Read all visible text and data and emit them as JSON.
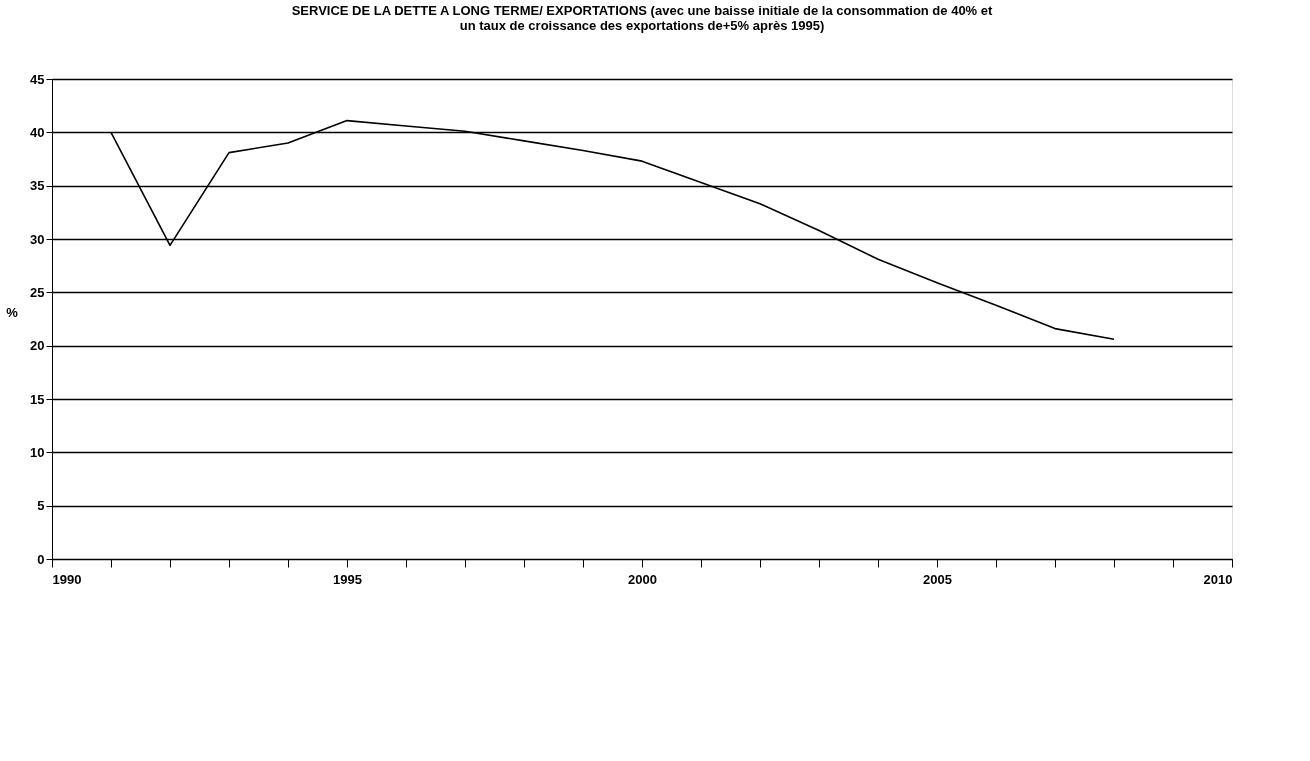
{
  "chart_data": {
    "type": "line",
    "title": [
      "SERVICE DE LA DETTE A LONG TERME/ EXPORTATIONS (avec une baisse initiale de la consommation de 40% et",
      "un taux de croissance des exportations de+5% après 1995)"
    ],
    "ylabel": "%",
    "x": [
      1991,
      1992,
      1993,
      1994,
      1995,
      1996,
      1997,
      1998,
      1999,
      2000,
      2001,
      2002,
      2003,
      2004,
      2005,
      2006,
      2007,
      2008
    ],
    "series": [
      {
        "color": "#000000",
        "values": [
          40,
          29.4,
          38.1,
          39,
          41.1,
          40.6,
          40.1,
          39.2,
          38.3,
          37.3,
          35.3,
          33.3,
          30.8,
          28.1,
          25.9,
          23.8,
          21.6,
          20.6
        ]
      }
    ],
    "xlim": [
      1990,
      2010
    ],
    "xticks": [
      1990,
      {
        "value": 1991,
        "label": null
      },
      {
        "value": 1992,
        "label": null
      },
      {
        "value": 1993,
        "label": null
      },
      {
        "value": 1994,
        "label": null
      },
      1995,
      {
        "value": 1996,
        "label": null
      },
      {
        "value": 1997,
        "label": null
      },
      {
        "value": 1998,
        "label": null
      },
      {
        "value": 1999,
        "label": null
      },
      2000,
      {
        "value": 2001,
        "label": null
      },
      {
        "value": 2002,
        "label": null
      },
      {
        "value": 2003,
        "label": null
      },
      {
        "value": 2004,
        "label": null
      },
      2005,
      {
        "value": 2006,
        "label": null
      },
      {
        "value": 2007,
        "label": null
      },
      {
        "value": 2008,
        "label": null
      },
      {
        "value": 2009,
        "label": null
      },
      2010
    ],
    "ylim": [
      0,
      45
    ],
    "yticks": [
      0,
      5,
      10,
      15,
      20,
      25,
      30,
      35,
      40,
      45
    ],
    "grid": "y",
    "marker": "none",
    "line_style": "solid"
  }
}
